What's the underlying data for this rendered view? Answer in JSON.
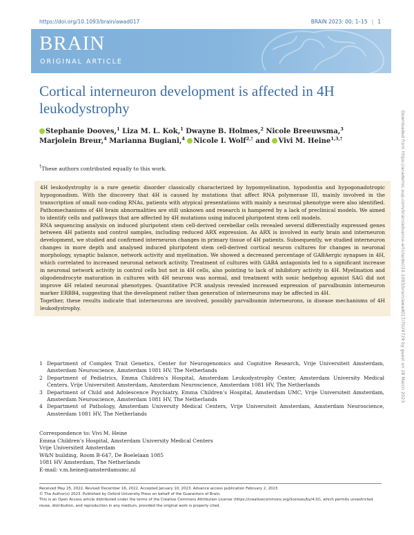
{
  "header": {
    "doi": "https://doi.org/10.1093/brain/awad017",
    "journal_ref": "BRAIN 2023: 00; 1–15",
    "page": "1"
  },
  "banner": {
    "journal": "BRAIN",
    "section": "ORIGINAL ARTICLE"
  },
  "title": "Cortical interneuron development is affected in 4H leukodystrophy",
  "authors": [
    [
      {
        "name": "Stephanie Dooves,",
        "sup": "1",
        "orcid": true
      },
      {
        "name": "Liza M. L. Kok,",
        "sup": "1",
        "orcid": false
      },
      {
        "name": "Dwayne B. Holmes,",
        "sup": "2",
        "orcid": false
      },
      {
        "name": "Nicole Breeuwsma,",
        "sup": "3",
        "orcid": false
      }
    ],
    [
      {
        "name": "Marjolein Breur,",
        "sup": "4",
        "orcid": false
      },
      {
        "name": "Marianna Bugiani,",
        "sup": "4",
        "orcid": false
      },
      {
        "name": "Nicole I. Wolf",
        "sup": "2,†",
        "orcid": true
      },
      {
        "name": "and",
        "sup": null,
        "orcid": false
      },
      {
        "name": "Vivi M. Heine",
        "sup": "1,3,†",
        "orcid": true
      }
    ]
  ],
  "footnote": {
    "mark": "†",
    "text": "These authors contributed equally to this work."
  },
  "abstract": [
    "4H leukodystrophy is a rare genetic disorder classically characterized by hypomyelination, hypodontia and hypogonadotropic hypogonadism. With the discovery that 4H is caused by mutations that affect RNA polymerase III, mainly involved in the transcription of small non-coding RNAs, patients with atypical presentations with mainly a neuronal phenotype were also identified. Pathomechanisms of 4H brain abnormalities are still unknown and research is hampered by a lack of preclinical models. We aimed to identify cells and pathways that are affected by 4H mutations using induced pluripotent stem cell models.",
    "RNA sequencing analysis on induced pluripotent stem cell-derived cerebellar cells revealed several differentially expressed genes between 4H patients and control samples, including reduced ARX expression. As ARX is involved in early brain and interneuron development, we studied and confirmed interneuron changes in primary tissue of 4H patients. Subsequently, we studied interneuron changes in more depth and analysed induced pluripotent stem cell-derived cortical neuron cultures for changes in neuronal morphology, synaptic balance, network activity and myelination. We showed a decreased percentage of GABAergic synapses in 4H, which correlated to increased neuronal network activity. Treatment of cultures with GABA antagonists led to a significant increase in neuronal network activity in control cells but not in 4H cells, also pointing to lack of inhibitory activity in 4H. Myelination and oligodendrocyte maturation in cultures with 4H neurons was normal, and treatment with sonic hedgehog agonist SAG did not improve 4H related neuronal phenotypes. Quantitative PCR analysis revealed increased expression of parvalbumin interneuron marker ERBB4, suggesting that the development rather than generation of interneurons may be affected in 4H.",
    "Together, these results indicate that interneurons are involved, possibly parvalbumin interneurons, in disease mechanisms of 4H leukodystrophy."
  ],
  "affiliations": [
    {
      "number": "1",
      "text": "Department of Complex Trait Genetics, Center for Neurogenomics and Cognitive Research, Vrije Universiteit Amsterdam, Amsterdam Neuroscience, Amsterdam 1081 HV, The Netherlands"
    },
    {
      "number": "2",
      "text": "Department of Pediatrics, Emma Children’s Hospital, Amsterdam Leukodystrophy Center, Amsterdam University Medical Centers, Vrije Universiteit Amsterdam, Amsterdam Neuroscience, Amsterdam 1081 HV, The Netherlands"
    },
    {
      "number": "3",
      "text": "Department of Child and Adolescence Psychiatry, Emma Children’s Hospital, Amsterdam UMC, Vrije Universiteit Amsterdam, Amsterdam Neuroscience, Amsterdam 1081 HV, The Netherlands"
    },
    {
      "number": "4",
      "text": "Department of Pathology, Amsterdam University Medical Centers, Vrije Universiteit Amsterdam, Amsterdam Neuroscience, Amsterdam 1081 HV, The Netherlands"
    }
  ],
  "correspondence": [
    "Correspondence to: Vivi M. Heine",
    "Emma Children’s Hospital, Amsterdam University Medical Centers",
    "Vrije Universiteit Amsterdam",
    "W&N building, Room B-647, De Boelelaan 1085",
    "1081 HV Amsterdam, The Netherlands",
    "E-mail: v.m.heine@amsterdamumc.nl"
  ],
  "footer": [
    "Received May 25, 2022. Revised December 16, 2022. Accepted January 10, 2023. Advance access publication February 2, 2023",
    "© The Author(s) 2023. Published by Oxford University Press on behalf of the Guarantors of Brain.",
    "This is an Open Access article distributed under the terms of the Creative Commons Attribution License (https://creativecommons.org/licenses/by/4.0/), which permits unrestricted reuse, distribution, and reproduction in any medium, provided the original work is properly cited."
  ],
  "side_note": "Downloaded from https://academic.oup.com/brain/advance-article/doi/10.1093/brain/awad017/7024729 by guest on 28 March 2023"
}
